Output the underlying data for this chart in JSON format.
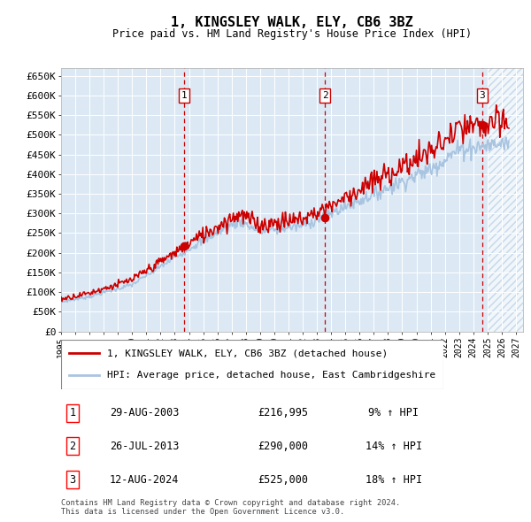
{
  "title": "1, KINGSLEY WALK, ELY, CB6 3BZ",
  "subtitle": "Price paid vs. HM Land Registry's House Price Index (HPI)",
  "ylabel_ticks": [
    "£0",
    "£50K",
    "£100K",
    "£150K",
    "£200K",
    "£250K",
    "£300K",
    "£350K",
    "£400K",
    "£450K",
    "£500K",
    "£550K",
    "£600K",
    "£650K"
  ],
  "ytick_values": [
    0,
    50000,
    100000,
    150000,
    200000,
    250000,
    300000,
    350000,
    400000,
    450000,
    500000,
    550000,
    600000,
    650000
  ],
  "xlim_start": 1995.0,
  "xlim_end": 2027.5,
  "ylim_min": 0,
  "ylim_max": 670000,
  "sale_dates": [
    2003.66,
    2013.57,
    2024.62
  ],
  "sale_prices": [
    216995,
    290000,
    525000
  ],
  "sale_labels": [
    "1",
    "2",
    "3"
  ],
  "legend_line1": "1, KINGSLEY WALK, ELY, CB6 3BZ (detached house)",
  "legend_line2": "HPI: Average price, detached house, East Cambridgeshire",
  "table_rows": [
    {
      "num": "1",
      "date": "29-AUG-2003",
      "price": "£216,995",
      "pct": "9% ↑ HPI"
    },
    {
      "num": "2",
      "date": "26-JUL-2013",
      "price": "£290,000",
      "pct": "14% ↑ HPI"
    },
    {
      "num": "3",
      "date": "12-AUG-2024",
      "price": "£525,000",
      "pct": "18% ↑ HPI"
    }
  ],
  "footnote": "Contains HM Land Registry data © Crown copyright and database right 2024.\nThis data is licensed under the Open Government Licence v3.0.",
  "hpi_color": "#a8c4e0",
  "price_color": "#cc0000",
  "sale_marker_color": "#cc0000",
  "vline_color": "#cc0000",
  "bg_color": "#dce9f5",
  "hatch_color": "#a8c4e0",
  "grid_color": "#ffffff",
  "label_box_color": "#cc0000"
}
